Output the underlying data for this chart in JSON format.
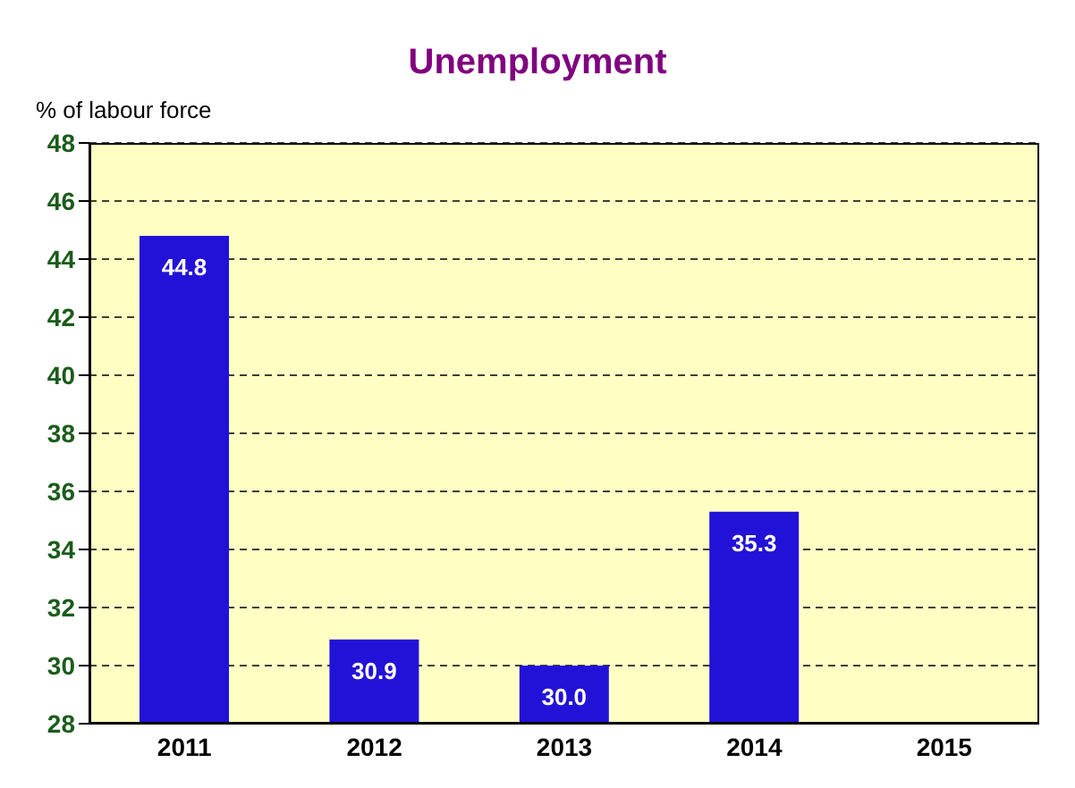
{
  "chart_data": {
    "type": "bar",
    "title": "Unemployment",
    "ylabel": "% of labour force",
    "categories": [
      "2011",
      "2012",
      "2013",
      "2014",
      "2015"
    ],
    "values": [
      44.8,
      30.9,
      30.0,
      35.3,
      null
    ],
    "value_labels": [
      "44.8",
      "30.9",
      "30.0",
      "35.3",
      null
    ],
    "color": "#2212d8",
    "ylim": [
      28,
      48
    ],
    "yticks": [
      28,
      30,
      32,
      34,
      36,
      38,
      40,
      42,
      44,
      46,
      48
    ],
    "grid": "y"
  }
}
